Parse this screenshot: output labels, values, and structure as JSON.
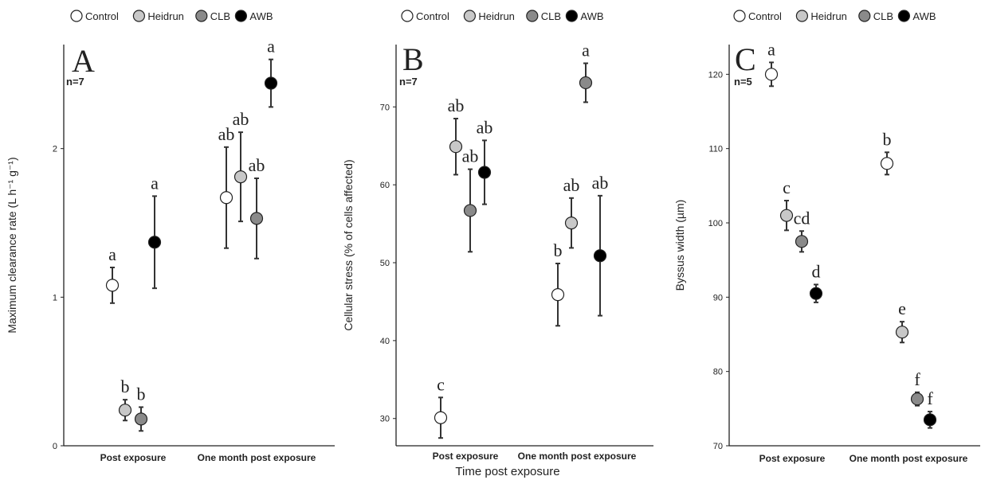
{
  "colors": {
    "Control": "#ffffff",
    "Heidrun": "#c8c8c8",
    "CLB": "#8a8a8a",
    "AWB": "#000000"
  },
  "xlabel": "Time post exposure",
  "chart_data": [
    {
      "type": "scatter",
      "panel_letter": "A",
      "n_label": "n=7",
      "legend": [
        "Control",
        "Heidrun",
        "CLB",
        "AWB"
      ],
      "legend_position": "top",
      "categories": [
        "Post exposure",
        "One month post exposure"
      ],
      "ylabel": "Maximum clearance rate  (L h⁻¹ g⁻¹)",
      "yticks": [
        0,
        1,
        2
      ],
      "ylim": [
        0,
        2.7
      ],
      "grid": false,
      "series": [
        {
          "name": "Control",
          "values": [
            1.08,
            1.67
          ],
          "err": [
            0.12,
            0.34
          ],
          "letters": [
            "a",
            "ab"
          ]
        },
        {
          "name": "Heidrun",
          "values": [
            0.24,
            1.81
          ],
          "err": [
            0.07,
            0.3
          ],
          "letters": [
            "b",
            "ab"
          ]
        },
        {
          "name": "CLB",
          "values": [
            0.18,
            1.53
          ],
          "err": [
            0.08,
            0.27
          ],
          "letters": [
            "b",
            "ab"
          ]
        },
        {
          "name": "AWB",
          "values": [
            1.37,
            2.44
          ],
          "err": [
            0.31,
            0.16
          ],
          "letters": [
            "a",
            "a"
          ]
        }
      ]
    },
    {
      "type": "scatter",
      "panel_letter": "B",
      "n_label": "n=7",
      "legend": [
        "Control",
        "Heidrun",
        "CLB",
        "AWB"
      ],
      "legend_position": "top",
      "categories": [
        "Post exposure",
        "One month post exposure"
      ],
      "ylabel": "Cellular stress (% of cells affected)",
      "yticks": [
        30,
        40,
        50,
        60,
        70
      ],
      "ylim": [
        26.5,
        78
      ],
      "grid": false,
      "series": [
        {
          "name": "Control",
          "values": [
            30.1,
            45.9
          ],
          "err": [
            2.6,
            4.0
          ],
          "letters": [
            "c",
            "b"
          ]
        },
        {
          "name": "Heidrun",
          "values": [
            64.9,
            55.1
          ],
          "err": [
            3.6,
            3.2
          ],
          "letters": [
            "ab",
            "ab"
          ]
        },
        {
          "name": "CLB",
          "values": [
            56.7,
            73.1
          ],
          "err": [
            5.3,
            2.5
          ],
          "letters": [
            "ab",
            "a"
          ]
        },
        {
          "name": "AWB",
          "values": [
            61.6,
            50.9
          ],
          "err": [
            4.1,
            7.7
          ],
          "letters": [
            "ab",
            "ab"
          ]
        }
      ]
    },
    {
      "type": "scatter",
      "panel_letter": "C",
      "n_label": "n=5",
      "legend": [
        "Control",
        "Heidrun",
        "CLB",
        "AWB"
      ],
      "legend_position": "top",
      "categories": [
        "Post exposure",
        "One month post exposure"
      ],
      "ylabel": "Byssus width (µm)",
      "yticks": [
        70,
        80,
        90,
        100,
        110,
        120
      ],
      "ylim": [
        70,
        124
      ],
      "grid": false,
      "series": [
        {
          "name": "Control",
          "values": [
            120.0,
            108.0
          ],
          "err": [
            1.6,
            1.5
          ],
          "letters": [
            "a",
            "b"
          ]
        },
        {
          "name": "Heidrun",
          "values": [
            101.0,
            85.3
          ],
          "err": [
            2.0,
            1.4
          ],
          "letters": [
            "c",
            "e"
          ]
        },
        {
          "name": "CLB",
          "values": [
            97.5,
            76.3
          ],
          "err": [
            1.4,
            0.9
          ],
          "letters": [
            "cd",
            "f"
          ]
        },
        {
          "name": "AWB",
          "values": [
            90.5,
            73.5
          ],
          "err": [
            1.2,
            1.1
          ],
          "letters": [
            "d",
            "f"
          ]
        }
      ]
    }
  ]
}
